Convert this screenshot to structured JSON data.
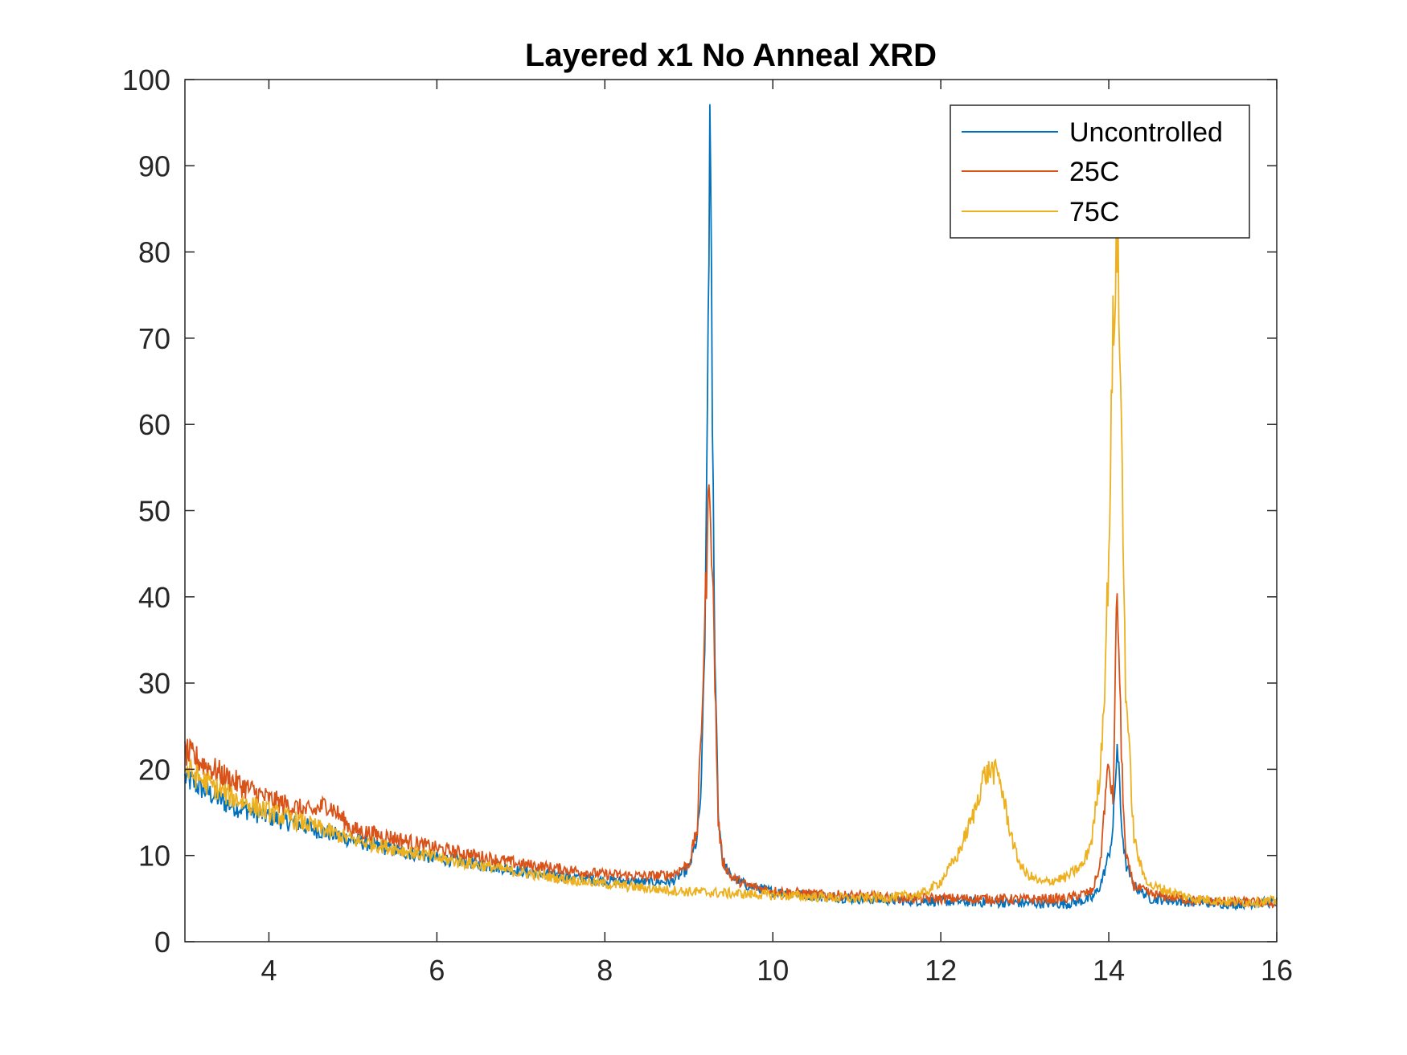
{
  "chart_data": {
    "type": "line",
    "title": "Layered x1 No Anneal XRD",
    "xlabel": "",
    "ylabel": "",
    "xlim": [
      3,
      16
    ],
    "ylim": [
      0,
      100
    ],
    "xticks": [
      4,
      6,
      8,
      10,
      12,
      14,
      16
    ],
    "yticks": [
      0,
      10,
      20,
      30,
      40,
      50,
      60,
      70,
      80,
      90,
      100
    ],
    "grid": false,
    "legend_position": "top-right",
    "series": [
      {
        "name": "Uncontrolled",
        "color": "#0072BD",
        "points": [
          [
            3.0,
            19
          ],
          [
            3.5,
            16
          ],
          [
            4.0,
            14.5
          ],
          [
            4.5,
            13.2
          ],
          [
            5.0,
            11.8
          ],
          [
            5.5,
            10.6
          ],
          [
            6.0,
            9.7
          ],
          [
            6.5,
            9.0
          ],
          [
            7.0,
            8.2
          ],
          [
            7.5,
            7.6
          ],
          [
            8.0,
            7.1
          ],
          [
            8.5,
            6.9
          ],
          [
            8.8,
            7.0
          ],
          [
            9.0,
            8.5
          ],
          [
            9.1,
            12
          ],
          [
            9.15,
            18
          ],
          [
            9.2,
            40
          ],
          [
            9.25,
            94.5
          ],
          [
            9.3,
            40
          ],
          [
            9.35,
            15
          ],
          [
            9.4,
            9.5
          ],
          [
            9.5,
            7.5
          ],
          [
            9.7,
            6.5
          ],
          [
            10.0,
            5.8
          ],
          [
            10.5,
            5.3
          ],
          [
            11.0,
            5.0
          ],
          [
            11.5,
            4.8
          ],
          [
            12.0,
            4.7
          ],
          [
            12.5,
            4.6
          ],
          [
            13.0,
            4.5
          ],
          [
            13.5,
            4.4
          ],
          [
            13.8,
            5.0
          ],
          [
            13.9,
            6.5
          ],
          [
            14.0,
            10
          ],
          [
            14.05,
            13
          ],
          [
            14.1,
            23
          ],
          [
            14.15,
            14
          ],
          [
            14.2,
            9
          ],
          [
            14.3,
            6.5
          ],
          [
            14.5,
            5.0
          ],
          [
            15.0,
            4.6
          ],
          [
            15.5,
            4.4
          ],
          [
            16.0,
            4.6
          ]
        ]
      },
      {
        "name": "25C",
        "color": "#D95319",
        "points": [
          [
            3.0,
            22
          ],
          [
            3.5,
            19
          ],
          [
            4.0,
            16.5
          ],
          [
            4.5,
            15
          ],
          [
            4.7,
            16
          ],
          [
            5.0,
            13
          ],
          [
            5.5,
            12
          ],
          [
            6.0,
            10.8
          ],
          [
            6.5,
            9.9
          ],
          [
            7.0,
            9.0
          ],
          [
            7.5,
            8.4
          ],
          [
            8.0,
            7.8
          ],
          [
            8.5,
            7.6
          ],
          [
            8.8,
            7.8
          ],
          [
            9.0,
            9
          ],
          [
            9.1,
            13
          ],
          [
            9.15,
            25
          ],
          [
            9.2,
            40
          ],
          [
            9.25,
            55
          ],
          [
            9.3,
            35
          ],
          [
            9.35,
            14
          ],
          [
            9.4,
            9.5
          ],
          [
            9.5,
            7.5
          ],
          [
            9.7,
            6.5
          ],
          [
            10.0,
            5.9
          ],
          [
            10.5,
            5.5
          ],
          [
            11.0,
            5.3
          ],
          [
            11.5,
            5.1
          ],
          [
            12.0,
            5.0
          ],
          [
            12.5,
            5.0
          ],
          [
            13.0,
            4.9
          ],
          [
            13.5,
            5.0
          ],
          [
            13.8,
            5.8
          ],
          [
            13.9,
            9
          ],
          [
            13.95,
            16
          ],
          [
            14.0,
            20.5
          ],
          [
            14.05,
            16
          ],
          [
            14.1,
            41.5
          ],
          [
            14.15,
            22
          ],
          [
            14.2,
            10
          ],
          [
            14.3,
            6.5
          ],
          [
            14.5,
            5.5
          ],
          [
            15.0,
            4.8
          ],
          [
            15.5,
            4.6
          ],
          [
            16.0,
            4.5
          ]
        ]
      },
      {
        "name": "75C",
        "color": "#EDB120",
        "points": [
          [
            3.0,
            20
          ],
          [
            3.5,
            17
          ],
          [
            4.0,
            15
          ],
          [
            4.5,
            13.5
          ],
          [
            5.0,
            11.8
          ],
          [
            5.5,
            10.8
          ],
          [
            6.0,
            9.7
          ],
          [
            6.5,
            8.9
          ],
          [
            7.0,
            8.0
          ],
          [
            7.5,
            7.3
          ],
          [
            8.0,
            6.7
          ],
          [
            8.5,
            6.2
          ],
          [
            9.0,
            5.8
          ],
          [
            9.5,
            5.6
          ],
          [
            10.0,
            5.4
          ],
          [
            10.5,
            5.2
          ],
          [
            11.0,
            5.0
          ],
          [
            11.5,
            5.2
          ],
          [
            11.8,
            5.6
          ],
          [
            12.0,
            7
          ],
          [
            12.2,
            10
          ],
          [
            12.4,
            15
          ],
          [
            12.5,
            19
          ],
          [
            12.6,
            20
          ],
          [
            12.7,
            19
          ],
          [
            12.8,
            14
          ],
          [
            12.9,
            10
          ],
          [
            13.0,
            8
          ],
          [
            13.2,
            6.8
          ],
          [
            13.5,
            7.5
          ],
          [
            13.7,
            9
          ],
          [
            13.8,
            12
          ],
          [
            13.9,
            20
          ],
          [
            13.95,
            30
          ],
          [
            14.0,
            45
          ],
          [
            14.05,
            70
          ],
          [
            14.1,
            83
          ],
          [
            14.15,
            60
          ],
          [
            14.2,
            30
          ],
          [
            14.3,
            12
          ],
          [
            14.4,
            8
          ],
          [
            14.5,
            6.5
          ],
          [
            15.0,
            5.0
          ],
          [
            15.5,
            4.6
          ],
          [
            16.0,
            4.7
          ]
        ]
      }
    ]
  }
}
